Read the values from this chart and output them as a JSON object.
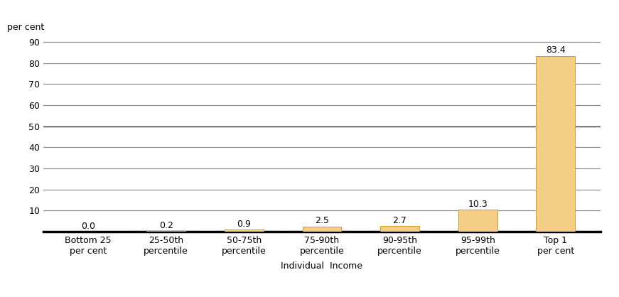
{
  "categories": [
    "Bottom 25\nper cent",
    "25-50th\npercentile",
    "50-75th\npercentile",
    "75-90th\npercentile",
    "90-95th\npercentile",
    "95-99th\npercentile",
    "Top 1\nper cent"
  ],
  "values": [
    0.0,
    0.2,
    0.9,
    2.5,
    2.7,
    10.3,
    83.4
  ],
  "bar_color": "#F5CE85",
  "bar_edge_color": "#C8A030",
  "ylabel": "per cent",
  "xlabel": "Individual  Income",
  "ylim": [
    0,
    93
  ],
  "yticks": [
    0,
    10,
    20,
    30,
    40,
    50,
    60,
    70,
    80,
    90
  ],
  "ytick_labels": [
    "",
    "10",
    "20",
    "30",
    "40",
    "50",
    "60",
    "70",
    "80",
    "90"
  ],
  "value_labels": [
    "0.0",
    "0.2",
    "0.9",
    "2.5",
    "2.7",
    "10.3",
    "83.4"
  ],
  "background_color": "#ffffff",
  "grid_color": "#888888",
  "axis_label_fontsize": 9,
  "tick_fontsize": 9,
  "value_fontsize": 9,
  "bar_width": 0.5,
  "figsize": [
    8.71,
    4.18
  ],
  "dpi": 100
}
